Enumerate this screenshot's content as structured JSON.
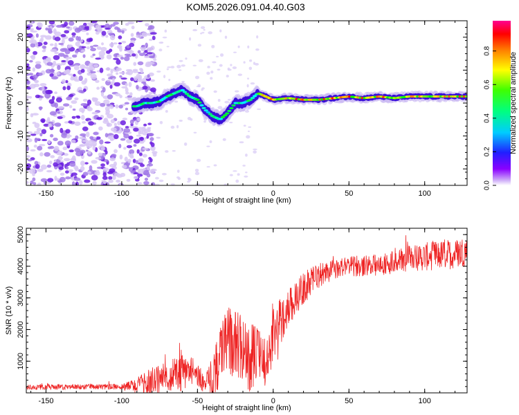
{
  "title": "KOM5.2026.091.04.40.G03",
  "colorbar": {
    "label": "Normalized spectral amplitude",
    "ticks": [
      "0.0",
      "0.2",
      "0.4",
      "0.6",
      "0.8"
    ]
  },
  "chart_data": [
    {
      "type": "heatmap",
      "xlabel": "Height of straight line (km)",
      "ylabel": "Frequency (Hz)",
      "xlim": [
        -163,
        128
      ],
      "ylim": [
        -25,
        25
      ],
      "xticks": [
        {
          "v": -150,
          "label": "-150"
        },
        {
          "v": -100,
          "label": "-100"
        },
        {
          "v": -50,
          "label": "-50"
        },
        {
          "v": 0,
          "label": "0"
        },
        {
          "v": 50,
          "label": "50"
        },
        {
          "v": 100,
          "label": "100"
        }
      ],
      "yticks": [
        {
          "v": 20,
          "label": "20"
        },
        {
          "v": 10,
          "label": "10"
        },
        {
          "v": 0,
          "label": "0"
        },
        {
          "v": -10,
          "label": "-10"
        },
        {
          "v": -20,
          "label": "-20"
        }
      ],
      "ridge": [
        [
          -90,
          -1
        ],
        [
          -85,
          0
        ],
        [
          -80,
          0
        ],
        [
          -75,
          0.5
        ],
        [
          -70,
          2
        ],
        [
          -65,
          3
        ],
        [
          -60,
          4
        ],
        [
          -55,
          2
        ],
        [
          -50,
          1
        ],
        [
          -45,
          -2
        ],
        [
          -40,
          -4
        ],
        [
          -35,
          -5
        ],
        [
          -30,
          -3
        ],
        [
          -25,
          0
        ],
        [
          -20,
          0
        ],
        [
          -15,
          1
        ],
        [
          -10,
          3
        ],
        [
          -5,
          2
        ],
        [
          0,
          1
        ],
        [
          10,
          1.5
        ],
        [
          20,
          1
        ],
        [
          30,
          1
        ],
        [
          40,
          1.5
        ],
        [
          50,
          2
        ],
        [
          60,
          1.5
        ],
        [
          70,
          2
        ],
        [
          80,
          1.5
        ],
        [
          90,
          2
        ],
        [
          100,
          2
        ],
        [
          110,
          2
        ],
        [
          120,
          2
        ],
        [
          128,
          2
        ]
      ]
    },
    {
      "type": "line",
      "xlabel": "Height of straight line (km)",
      "ylabel": "SNR (10 * v/v)",
      "xlim": [
        -163,
        128
      ],
      "ylim": [
        0,
        5200
      ],
      "color": "#ee2222",
      "xticks": [
        {
          "v": -150,
          "label": "-150"
        },
        {
          "v": -100,
          "label": "-100"
        },
        {
          "v": -50,
          "label": "-50"
        },
        {
          "v": 0,
          "label": "0"
        },
        {
          "v": 50,
          "label": "50"
        },
        {
          "v": 100,
          "label": "100"
        }
      ],
      "yticks": [
        {
          "v": 1000,
          "label": "1000"
        },
        {
          "v": 2000,
          "label": "2000"
        },
        {
          "v": 3000,
          "label": "3000"
        },
        {
          "v": 4000,
          "label": "4000"
        },
        {
          "v": 5000,
          "label": "5000"
        }
      ],
      "envelope": [
        [
          -163,
          180
        ],
        [
          -140,
          180
        ],
        [
          -120,
          190
        ],
        [
          -100,
          200
        ],
        [
          -90,
          220
        ],
        [
          -80,
          350
        ],
        [
          -70,
          500
        ],
        [
          -60,
          650
        ],
        [
          -55,
          700
        ],
        [
          -50,
          600
        ],
        [
          -45,
          250
        ],
        [
          -40,
          400
        ],
        [
          -35,
          1300
        ],
        [
          -30,
          1700
        ],
        [
          -25,
          1500
        ],
        [
          -20,
          1400
        ],
        [
          -15,
          1100
        ],
        [
          -10,
          1300
        ],
        [
          -5,
          900
        ],
        [
          0,
          1700
        ],
        [
          5,
          2300
        ],
        [
          10,
          2700
        ],
        [
          15,
          3000
        ],
        [
          20,
          3300
        ],
        [
          30,
          3700
        ],
        [
          40,
          3900
        ],
        [
          50,
          4000
        ],
        [
          60,
          4000
        ],
        [
          70,
          4050
        ],
        [
          80,
          4150
        ],
        [
          90,
          4250
        ],
        [
          100,
          4300
        ],
        [
          110,
          4350
        ],
        [
          120,
          4400
        ],
        [
          128,
          4500
        ]
      ],
      "noise": [
        [
          -163,
          80
        ],
        [
          -100,
          90
        ],
        [
          -80,
          450
        ],
        [
          -60,
          600
        ],
        [
          -45,
          300
        ],
        [
          -38,
          900
        ],
        [
          -25,
          1100
        ],
        [
          -15,
          1100
        ],
        [
          -8,
          700
        ],
        [
          0,
          900
        ],
        [
          10,
          600
        ],
        [
          20,
          500
        ],
        [
          40,
          300
        ],
        [
          70,
          350
        ],
        [
          100,
          450
        ],
        [
          128,
          500
        ]
      ]
    }
  ]
}
